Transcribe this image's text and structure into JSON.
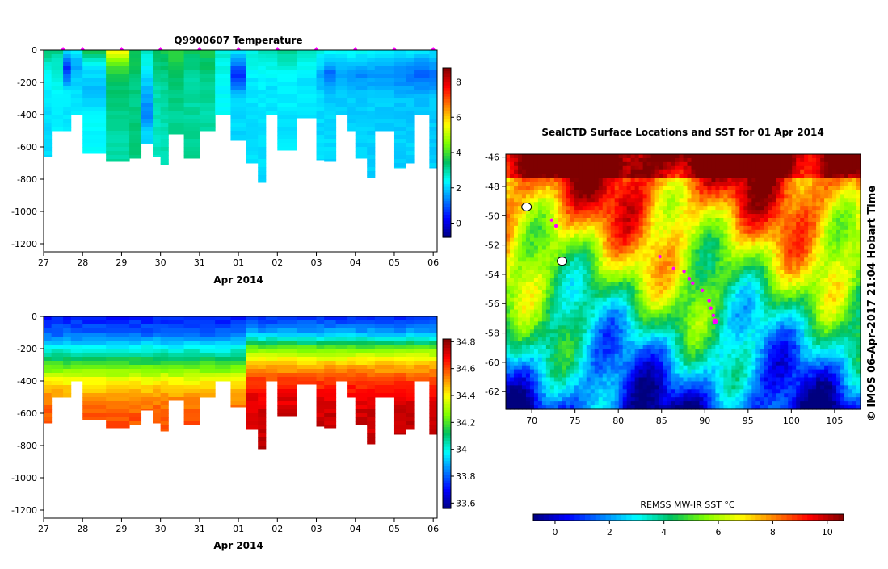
{
  "chart_data": [
    {
      "type": "heatmap",
      "id": "temperature",
      "title": "Q9900607  Temperature",
      "xlabel": "Apr 2014",
      "x_tick_labels": [
        "27",
        "28",
        "29",
        "30",
        "31",
        "01",
        "02",
        "03",
        "04",
        "05",
        "06"
      ],
      "y_tick_labels": [
        "0",
        "-200",
        "-400",
        "-600",
        "-800",
        "-1000",
        "-1200"
      ],
      "y_ticks": [
        0,
        -200,
        -400,
        -600,
        -800,
        -1000,
        -1200
      ],
      "ylim": [
        -1250,
        0
      ],
      "xlim": [
        27,
        37.1
      ],
      "colorbar": {
        "min": -0.8,
        "max": 8.8,
        "tick_labels": [
          "0",
          "2",
          "4",
          "6",
          "8"
        ],
        "ticks": [
          0,
          2,
          4,
          6,
          8
        ]
      },
      "profile_markers_x": [
        27.5,
        28,
        29,
        30,
        31,
        32,
        33,
        34,
        35,
        36,
        37
      ],
      "profiles": [
        {
          "x0": 27.0,
          "x1": 27.2,
          "bottom": -660,
          "values": [
            [
              0,
              3.5
            ],
            [
              -100,
              2.6
            ],
            [
              -300,
              2.2
            ],
            [
              -500,
              2.1
            ]
          ]
        },
        {
          "x0": 27.2,
          "x1": 27.5,
          "bottom": -500,
          "values": [
            [
              0,
              3.2
            ],
            [
              -100,
              2.7
            ],
            [
              -300,
              2.3
            ]
          ]
        },
        {
          "x0": 27.5,
          "x1": 27.7,
          "bottom": -500,
          "values": [
            [
              0,
              2.2
            ],
            [
              -120,
              0.6
            ],
            [
              -250,
              2.2
            ]
          ]
        },
        {
          "x0": 27.7,
          "x1": 28.0,
          "bottom": -400,
          "values": [
            [
              0,
              2.4
            ],
            [
              -100,
              1.6
            ],
            [
              -250,
              2.2
            ]
          ]
        },
        {
          "x0": 28.0,
          "x1": 28.6,
          "bottom": -640,
          "values": [
            [
              0,
              3.8
            ],
            [
              -100,
              2.2
            ],
            [
              -250,
              1.8
            ],
            [
              -400,
              2.4
            ]
          ]
        },
        {
          "x0": 28.6,
          "x1": 29.2,
          "bottom": -690,
          "values": [
            [
              0,
              5.8
            ],
            [
              -100,
              4.0
            ],
            [
              -200,
              3.4
            ],
            [
              -500,
              3.0
            ]
          ]
        },
        {
          "x0": 29.2,
          "x1": 29.5,
          "bottom": -670,
          "values": [
            [
              0,
              3.6
            ],
            [
              -300,
              3.2
            ],
            [
              -550,
              3.3
            ]
          ]
        },
        {
          "x0": 29.5,
          "x1": 29.8,
          "bottom": -580,
          "values": [
            [
              0,
              2.8
            ],
            [
              -200,
              2.0
            ],
            [
              -400,
              1.3
            ],
            [
              -500,
              2.0
            ]
          ]
        },
        {
          "x0": 29.8,
          "x1": 30.0,
          "bottom": -660,
          "values": [
            [
              0,
              3.5
            ],
            [
              -200,
              3.0
            ],
            [
              -500,
              2.8
            ]
          ]
        },
        {
          "x0": 30.0,
          "x1": 30.2,
          "bottom": -710,
          "values": [
            [
              0,
              3.6
            ],
            [
              -200,
              3.1
            ],
            [
              -500,
              2.9
            ]
          ]
        },
        {
          "x0": 30.2,
          "x1": 30.6,
          "bottom": -520,
          "values": [
            [
              0,
              3.9
            ],
            [
              -200,
              3.4
            ],
            [
              -400,
              3.1
            ]
          ]
        },
        {
          "x0": 30.6,
          "x1": 31.0,
          "bottom": -670,
          "values": [
            [
              0,
              3.5
            ],
            [
              -200,
              3.0
            ],
            [
              -500,
              3.1
            ]
          ]
        },
        {
          "x0": 31.0,
          "x1": 31.4,
          "bottom": -500,
          "values": [
            [
              0,
              3.6
            ],
            [
              -200,
              3.2
            ],
            [
              -400,
              3.0
            ]
          ]
        },
        {
          "x0": 31.4,
          "x1": 31.8,
          "bottom": -400,
          "values": [
            [
              0,
              2.7
            ],
            [
              -200,
              2.4
            ]
          ]
        },
        {
          "x0": 31.8,
          "x1": 32.2,
          "bottom": -560,
          "values": [
            [
              0,
              2.4
            ],
            [
              -150,
              0.6
            ],
            [
              -300,
              2.0
            ],
            [
              -450,
              2.1
            ]
          ]
        },
        {
          "x0": 32.2,
          "x1": 32.5,
          "bottom": -700,
          "values": [
            [
              0,
              2.7
            ],
            [
              -200,
              2.2
            ],
            [
              -500,
              2.1
            ]
          ]
        },
        {
          "x0": 32.5,
          "x1": 32.7,
          "bottom": -820,
          "values": [
            [
              0,
              2.9
            ],
            [
              -200,
              2.3
            ],
            [
              -500,
              2.1
            ]
          ]
        },
        {
          "x0": 32.7,
          "x1": 33.0,
          "bottom": -400,
          "values": [
            [
              0,
              2.9
            ],
            [
              -200,
              2.2
            ]
          ]
        },
        {
          "x0": 33.0,
          "x1": 33.5,
          "bottom": -620,
          "values": [
            [
              0,
              3.1
            ],
            [
              -200,
              2.3
            ],
            [
              -450,
              2.2
            ]
          ]
        },
        {
          "x0": 33.5,
          "x1": 34.0,
          "bottom": -420,
          "values": [
            [
              0,
              2.8
            ],
            [
              -200,
              2.2
            ]
          ]
        },
        {
          "x0": 34.0,
          "x1": 34.2,
          "bottom": -680,
          "values": [
            [
              0,
              2.6
            ],
            [
              -150,
              1.7
            ],
            [
              -300,
              2.1
            ],
            [
              -500,
              2.1
            ]
          ]
        },
        {
          "x0": 34.2,
          "x1": 34.5,
          "bottom": -690,
          "values": [
            [
              0,
              2.6
            ],
            [
              -150,
              1.1
            ],
            [
              -300,
              2.0
            ],
            [
              -500,
              2.1
            ]
          ]
        },
        {
          "x0": 34.5,
          "x1": 34.8,
          "bottom": -400,
          "values": [
            [
              0,
              2.5
            ],
            [
              -150,
              1.6
            ],
            [
              -300,
              2.0
            ]
          ]
        },
        {
          "x0": 34.8,
          "x1": 35.0,
          "bottom": -500,
          "values": [
            [
              0,
              2.6
            ],
            [
              -150,
              1.4
            ],
            [
              -300,
              2.0
            ]
          ]
        },
        {
          "x0": 35.0,
          "x1": 35.3,
          "bottom": -670,
          "values": [
            [
              0,
              2.5
            ],
            [
              -150,
              1.4
            ],
            [
              -300,
              2.0
            ],
            [
              -500,
              2.0
            ]
          ]
        },
        {
          "x0": 35.3,
          "x1": 35.5,
          "bottom": -790,
          "values": [
            [
              0,
              2.5
            ],
            [
              -150,
              1.5
            ],
            [
              -300,
              2.0
            ],
            [
              -500,
              2.0
            ]
          ]
        },
        {
          "x0": 35.5,
          "x1": 36.0,
          "bottom": -500,
          "values": [
            [
              0,
              2.4
            ],
            [
              -150,
              1.4
            ],
            [
              -300,
              2.0
            ]
          ]
        },
        {
          "x0": 36.0,
          "x1": 36.3,
          "bottom": -730,
          "values": [
            [
              0,
              2.3
            ],
            [
              -150,
              1.3
            ],
            [
              -300,
              1.9
            ],
            [
              -500,
              2.0
            ]
          ]
        },
        {
          "x0": 36.3,
          "x1": 36.5,
          "bottom": -700,
          "values": [
            [
              0,
              2.3
            ],
            [
              -150,
              1.2
            ],
            [
              -300,
              1.9
            ],
            [
              -500,
              2.0
            ]
          ]
        },
        {
          "x0": 36.5,
          "x1": 36.9,
          "bottom": -400,
          "values": [
            [
              0,
              2.2
            ],
            [
              -150,
              1.0
            ],
            [
              -300,
              1.9
            ]
          ]
        },
        {
          "x0": 36.9,
          "x1": 37.1,
          "bottom": -730,
          "values": [
            [
              0,
              2.2
            ],
            [
              -150,
              1.2
            ],
            [
              -300,
              1.9
            ],
            [
              -500,
              2.0
            ]
          ]
        }
      ]
    },
    {
      "type": "heatmap",
      "id": "salinity",
      "xlabel": "Apr 2014",
      "x_tick_labels": [
        "27",
        "28",
        "29",
        "30",
        "31",
        "01",
        "02",
        "03",
        "04",
        "05",
        "06"
      ],
      "y_tick_labels": [
        "0",
        "-200",
        "-400",
        "-600",
        "-800",
        "-1000",
        "-1200"
      ],
      "y_ticks": [
        0,
        -200,
        -400,
        -600,
        -800,
        -1000,
        -1200
      ],
      "ylim": [
        -1250,
        0
      ],
      "xlim": [
        27,
        37.1
      ],
      "colorbar": {
        "min": 33.56,
        "max": 34.82,
        "tick_labels": [
          "33.6",
          "33.8",
          "34",
          "34.2",
          "34.4",
          "34.6",
          "34.8"
        ],
        "ticks": [
          33.6,
          33.8,
          34.0,
          34.2,
          34.4,
          34.6,
          34.8
        ]
      },
      "salinity_depth_profile": [
        [
          0,
          33.72
        ],
        [
          -100,
          33.8
        ],
        [
          -200,
          34.0
        ],
        [
          -300,
          34.2
        ],
        [
          -400,
          34.4
        ],
        [
          -500,
          34.52
        ],
        [
          -600,
          34.58
        ],
        [
          -800,
          34.62
        ]
      ],
      "salinity_depth_profile_late": [
        [
          0,
          33.74
        ],
        [
          -100,
          33.88
        ],
        [
          -200,
          34.25
        ],
        [
          -300,
          34.48
        ],
        [
          -400,
          34.62
        ],
        [
          -500,
          34.7
        ],
        [
          -600,
          34.73
        ],
        [
          -800,
          34.75
        ]
      ]
    },
    {
      "type": "heatmap",
      "id": "sst_map",
      "title": "SealCTD Surface Locations and SST for 01 Apr 2014",
      "x_tick_labels": [
        "70",
        "75",
        "80",
        "85",
        "90",
        "95",
        "100",
        "105"
      ],
      "x_ticks": [
        70,
        75,
        80,
        85,
        90,
        95,
        100,
        105
      ],
      "y_tick_labels": [
        "-46",
        "-48",
        "-50",
        "-52",
        "-54",
        "-56",
        "-58",
        "-60",
        "-62"
      ],
      "y_ticks": [
        -46,
        -48,
        -50,
        -52,
        -54,
        -56,
        -58,
        -60,
        -62
      ],
      "xlim": [
        67,
        108
      ],
      "ylim": [
        -63.2,
        -45.8
      ],
      "colorbar": {
        "label": "REMSS MW-IR SST °C",
        "min": -0.8,
        "max": 10.6,
        "tick_labels": [
          "0",
          "2",
          "4",
          "6",
          "8",
          "10"
        ],
        "ticks": [
          0,
          2,
          4,
          6,
          8,
          10
        ]
      },
      "surface_locations": [
        {
          "lon": 72.3,
          "lat": -50.3
        },
        {
          "lon": 72.8,
          "lat": -50.7
        },
        {
          "lon": 84.8,
          "lat": -52.8
        },
        {
          "lon": 86.4,
          "lat": -53.6
        },
        {
          "lon": 87.6,
          "lat": -53.8
        },
        {
          "lon": 88.2,
          "lat": -54.3
        },
        {
          "lon": 88.6,
          "lat": -54.6
        },
        {
          "lon": 89.7,
          "lat": -55.1
        },
        {
          "lon": 90.5,
          "lat": -55.8
        },
        {
          "lon": 90.7,
          "lat": -56.3
        },
        {
          "lon": 91.0,
          "lat": -56.8
        },
        {
          "lon": 91.2,
          "lat": -57.2
        }
      ],
      "land": [
        {
          "lon": 69.4,
          "lat": -49.4
        },
        {
          "lon": 73.5,
          "lat": -53.1
        }
      ]
    }
  ],
  "credit": "© IMOS 06-Apr-2017 21:04 Hobart Time",
  "colors": {
    "jet_stops": [
      "#00007f",
      "#0000ff",
      "#0080ff",
      "#00ffff",
      "#00c060",
      "#80ff00",
      "#ffff00",
      "#ff8000",
      "#ff0000",
      "#7f0000"
    ],
    "marker": "#ff00ff",
    "missing": "#ffffff"
  }
}
